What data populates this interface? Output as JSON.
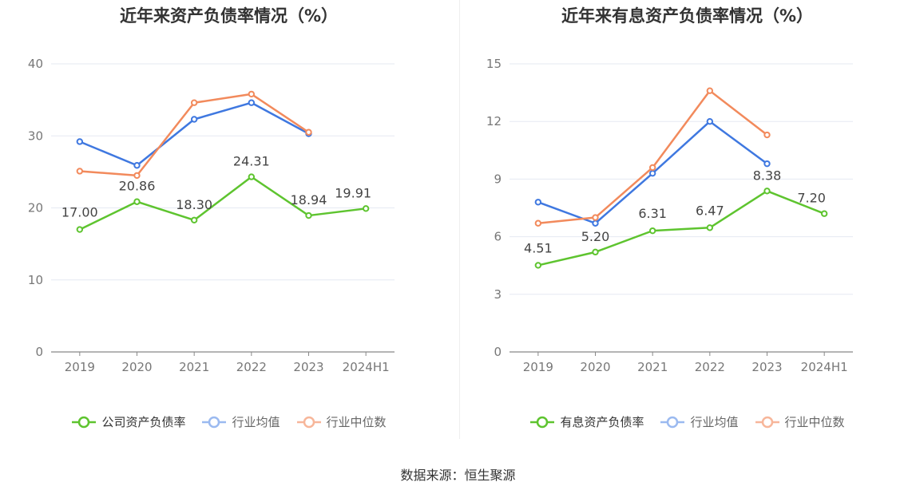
{
  "colors": {
    "company": "#5ec42f",
    "avg": "#3f78e0",
    "median": "#f28a5c",
    "grid": "#e5e9f2",
    "axis": "#888888",
    "tick_text": "#777777"
  },
  "source_text": "数据来源：恒生聚源",
  "chart_data": [
    {
      "type": "line",
      "title": "近年来资产负债率情况（%）",
      "categories": [
        "2019",
        "2020",
        "2021",
        "2022",
        "2023",
        "2024H1"
      ],
      "ylim": [
        0,
        40
      ],
      "yticks": [
        "0",
        "10",
        "20",
        "30",
        "40"
      ],
      "grid": true,
      "legend_position": "bottom",
      "series": [
        {
          "name": "公司资产负债率",
          "values": [
            17.0,
            20.86,
            18.3,
            24.31,
            18.94,
            19.91
          ],
          "labels": [
            "17.00",
            "20.86",
            "18.30",
            "24.31",
            "18.94",
            "19.91"
          ]
        },
        {
          "name": "行业均值",
          "values": [
            29.2,
            25.9,
            32.3,
            34.6,
            30.3,
            null
          ]
        },
        {
          "name": "行业中位数",
          "values": [
            25.1,
            24.5,
            34.6,
            35.8,
            30.5,
            null
          ]
        }
      ]
    },
    {
      "type": "line",
      "title": "近年来有息资产负债率情况（%）",
      "categories": [
        "2019",
        "2020",
        "2021",
        "2022",
        "2023",
        "2024H1"
      ],
      "ylim": [
        0,
        15
      ],
      "yticks": [
        "0",
        "3",
        "6",
        "9",
        "12",
        "15"
      ],
      "grid": true,
      "legend_position": "bottom",
      "series": [
        {
          "name": "有息资产负债率",
          "values": [
            4.51,
            5.2,
            6.31,
            6.47,
            8.38,
            7.2
          ],
          "labels": [
            "4.51",
            "5.20",
            "6.31",
            "6.47",
            "8.38",
            "7.20"
          ]
        },
        {
          "name": "行业均值",
          "values": [
            7.8,
            6.7,
            9.3,
            12.0,
            9.8,
            null
          ]
        },
        {
          "name": "行业中位数",
          "values": [
            6.7,
            7.0,
            9.6,
            13.6,
            11.3,
            null
          ]
        }
      ]
    }
  ]
}
